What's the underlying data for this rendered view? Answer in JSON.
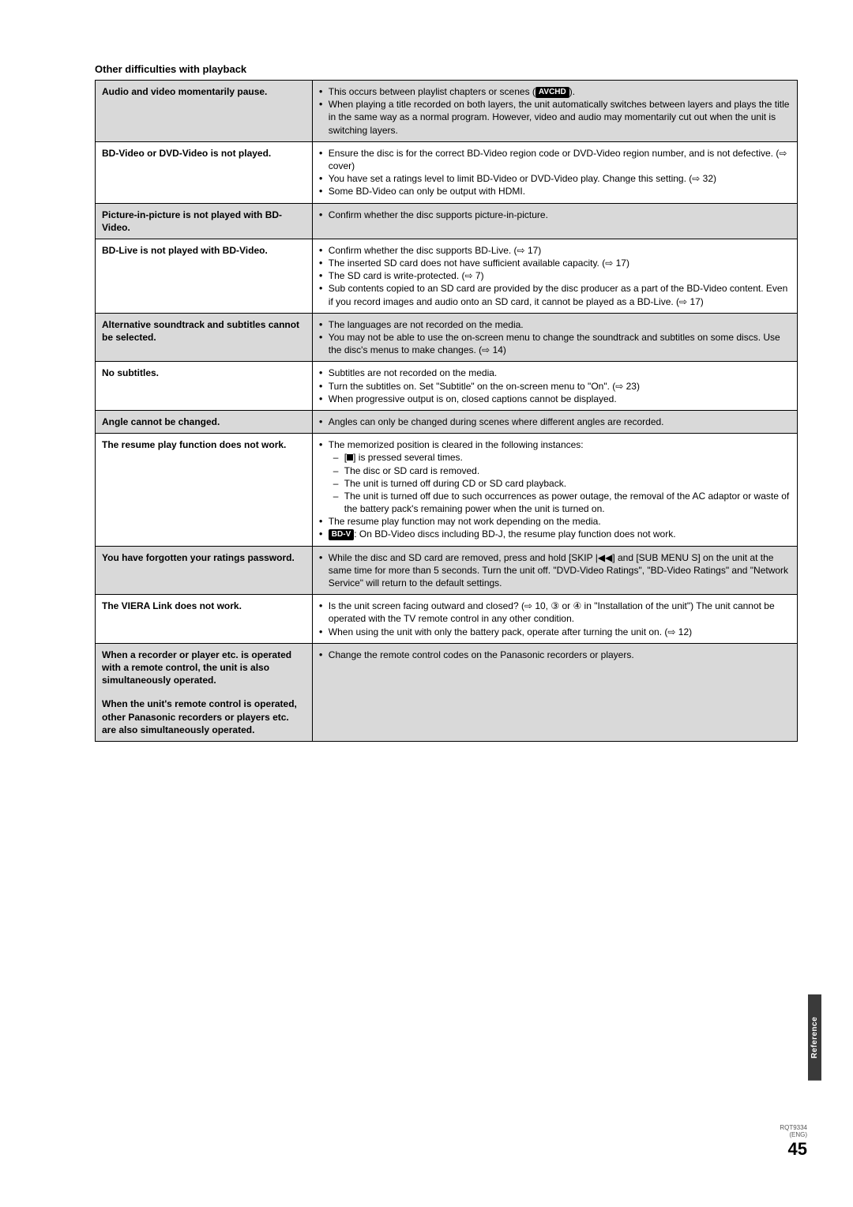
{
  "section_title": "Other difficulties with playback",
  "rows": [
    {
      "shaded": true,
      "left": "Audio and video momentarily pause.",
      "right_html": "b1"
    },
    {
      "shaded": false,
      "left": "BD-Video or DVD-Video is not played.",
      "right_html": "b2"
    },
    {
      "shaded": true,
      "left": "Picture-in-picture is not played with BD-Video.",
      "right_html": "b3"
    },
    {
      "shaded": false,
      "left": "BD-Live is not played with BD-Video.",
      "right_html": "b4"
    },
    {
      "shaded": true,
      "left": "Alternative soundtrack and subtitles cannot be selected.",
      "right_html": "b5"
    },
    {
      "shaded": false,
      "left": "No subtitles.",
      "right_html": "b6"
    },
    {
      "shaded": true,
      "left": "Angle cannot be changed.",
      "right_html": "b7"
    },
    {
      "shaded": false,
      "left": "The resume play function does not work.",
      "right_html": "b8"
    },
    {
      "shaded": true,
      "left": "You have forgotten your ratings password.",
      "right_html": "b9"
    },
    {
      "shaded": false,
      "left": "The VIERA Link does not work.",
      "right_html": "b10"
    },
    {
      "shaded": true,
      "left_html": "left11",
      "right_html": "b11"
    }
  ],
  "content": {
    "b1": [
      {
        "type": "bullet",
        "text": "This occurs between playlist chapters or scenes (",
        "badge": "AVCHD",
        "text2": ")."
      },
      {
        "type": "bullet",
        "text": "When playing a title recorded on both layers, the unit automatically switches between layers and plays the title in the same way as a normal program. However, video and audio may momentarily cut out when the unit is switching layers."
      }
    ],
    "b2": [
      {
        "type": "bullet",
        "text": "Ensure the disc is for the correct BD-Video region code or DVD-Video region number, and is not defective. (⇨ cover)"
      },
      {
        "type": "bullet",
        "text": "You have set a ratings level to limit BD-Video or DVD-Video play. Change this setting. (⇨ 32)"
      },
      {
        "type": "bullet",
        "text": "Some BD-Video can only be output with HDMI."
      }
    ],
    "b3": [
      {
        "type": "bullet",
        "text": "Confirm whether the disc supports picture-in-picture."
      }
    ],
    "b4": [
      {
        "type": "bullet",
        "text": "Confirm whether the disc supports BD-Live. (⇨ 17)"
      },
      {
        "type": "bullet",
        "text": "The inserted SD card does not have sufficient available capacity. (⇨ 17)"
      },
      {
        "type": "bullet",
        "text": "The SD card is write-protected. (⇨ 7)"
      },
      {
        "type": "bullet",
        "text": "Sub contents copied to an SD card are provided by the disc producer as a part of the BD-Video content. Even if you record images and audio onto an SD card, it cannot be played as a BD-Live. (⇨ 17)"
      }
    ],
    "b5": [
      {
        "type": "bullet",
        "text": "The languages are not recorded on the media."
      },
      {
        "type": "bullet",
        "text": "You may not be able to use the on-screen menu to change the soundtrack and subtitles on some discs. Use the disc's menus to make changes. (⇨ 14)"
      }
    ],
    "b6": [
      {
        "type": "bullet",
        "text": "Subtitles are not recorded on the media."
      },
      {
        "type": "bullet",
        "text": "Turn the subtitles on. Set \"Subtitle\" on the on-screen menu to \"On\". (⇨ 23)"
      },
      {
        "type": "bullet",
        "text": "When progressive output is on, closed captions cannot be displayed."
      }
    ],
    "b7": [
      {
        "type": "bullet",
        "text": "Angles can only be changed during scenes where different angles are recorded."
      }
    ],
    "b8_intro": "The memorized position is cleared in the following instances:",
    "b8_dashes": [
      "[■] is pressed several times.",
      "The disc or SD card is removed.",
      "The unit is turned off during CD or SD card playback.",
      "The unit is turned off due to such occurrences as power outage, the removal of the AC adaptor or waste of the battery pack's remaining power when the unit is turned on."
    ],
    "b8_tail1": "The resume play function may not work depending on the media.",
    "b8_tail2_badge": "BD-V",
    "b8_tail2_text": ": On BD-Video discs including BD-J, the resume play function does not work.",
    "b9": [
      {
        "type": "bullet",
        "text": "While the disc and SD card are removed, press and hold [SKIP |◀◀] and [SUB MENU S] on the unit at the same time for more than 5 seconds. Turn the unit off. \"DVD-Video Ratings\", \"BD-Video Ratings\" and \"Network Service\" will return to the default settings."
      }
    ],
    "b10": [
      {
        "type": "bullet",
        "text": "Is the unit screen facing outward and closed? (⇨ 10, ③ or ④ in \"Installation of the unit\") The unit cannot be operated with the TV remote control in any other condition."
      },
      {
        "type": "bullet",
        "text": "When using the unit with only the battery pack, operate after turning the unit on. (⇨ 12)"
      }
    ],
    "left11_a": "When a recorder or player etc. is operated with a remote control, the unit is also simultaneously operated.",
    "left11_b": "When the unit's remote control is operated, other Panasonic recorders or players etc. are also simultaneously operated.",
    "b11": [
      {
        "type": "bullet",
        "text": "Change the remote control codes on the Panasonic recorders or players."
      }
    ]
  },
  "side_tab": "Reference",
  "page_code1": "RQT9334",
  "page_code2": "(ENG)",
  "page_num": "45"
}
